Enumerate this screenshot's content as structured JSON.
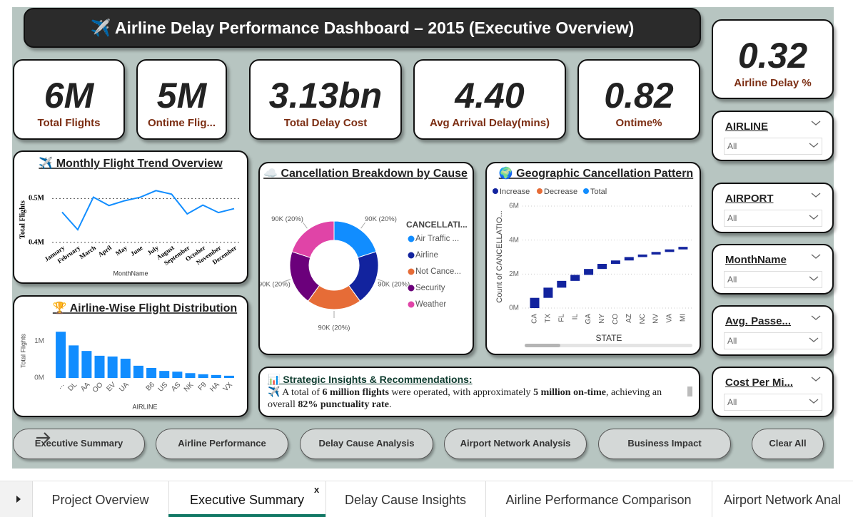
{
  "header": {
    "title": "✈️ Airline Delay Performance Dashboard – 2015 (Executive Overview)"
  },
  "kpis": [
    {
      "value": "6M",
      "label": "Total Flights"
    },
    {
      "value": "5M",
      "label": "Ontime Flig..."
    },
    {
      "value": "3.13bn",
      "label": "Total Delay Cost"
    },
    {
      "value": "4.40",
      "label": "Avg Arrival Delay(mins)"
    },
    {
      "value": "0.82",
      "label": "Ontime%"
    },
    {
      "value": "0.32",
      "label": "Airline Delay %"
    }
  ],
  "filters": [
    {
      "label": "AIRLINE",
      "value": "All"
    },
    {
      "label": "AIRPORT",
      "value": "All"
    },
    {
      "label": "MonthName",
      "value": "All"
    },
    {
      "label": "Avg. Passe...",
      "value": "All"
    },
    {
      "label": "Cost Per Mi...",
      "value": "All"
    }
  ],
  "monthly_chart": {
    "type": "line",
    "title": "✈️ Monthly Flight Trend Overview",
    "x_label": "MonthName",
    "y_label": "Total Flights",
    "color": "#118DFF",
    "categories": [
      "January",
      "February",
      "March",
      "April",
      "May",
      "June",
      "July",
      "August",
      "September",
      "October",
      "November",
      "December"
    ],
    "values": [
      469000,
      429000,
      503000,
      484000,
      495000,
      503000,
      518000,
      510000,
      465000,
      485000,
      468000,
      477000
    ],
    "ylim": [
      400000,
      525000
    ],
    "yticks": [
      {
        "value": 400000,
        "label": "0.4M"
      },
      {
        "value": 500000,
        "label": "0.5M"
      }
    ],
    "grid": true
  },
  "airline_chart": {
    "type": "bar",
    "title": "🏆 Airline-Wise Flight Distribution",
    "x_label": "AIRLINE",
    "y_label": "Total Flights",
    "color": "#118DFF",
    "categories": [
      "...",
      "DL",
      "AA",
      "OO",
      "EV",
      "UA",
      null,
      "B6",
      "US",
      "AS",
      "NK",
      "F9",
      "HA",
      "VX"
    ],
    "values": [
      1250000,
      880000,
      730000,
      600000,
      580000,
      520000,
      330000,
      270000,
      190000,
      170000,
      130000,
      100000,
      80000,
      60000
    ],
    "ylim": [
      0,
      1350000
    ],
    "yticks": [
      {
        "value": 0,
        "label": "0M"
      },
      {
        "value": 1000000,
        "label": "1M"
      }
    ]
  },
  "cancellation_chart": {
    "type": "donut",
    "title": "☁️ Cancellation Breakdown by Cause",
    "legend_title": "CANCELLATI...",
    "categories": [
      "Air Traffic ...",
      "Airline",
      "Not Cance...",
      "Security",
      "Weather"
    ],
    "values": [
      90000,
      90000,
      90000,
      90000,
      90000
    ],
    "value_labels": [
      "90K (20%)",
      "90K (20%)",
      "90K (20%)",
      "90K (20%)",
      "90K (20%)"
    ],
    "colors": [
      "#118DFF",
      "#12239E",
      "#E66C37",
      "#6B007B",
      "#E044A7"
    ]
  },
  "geo_chart": {
    "type": "waterfall",
    "title": "🌍 Geographic Cancellation Pattern",
    "x_label": "STATE",
    "y_label": "Count of CANCELLATIO...",
    "legend": [
      {
        "name": "Increase",
        "color": "#12239E"
      },
      {
        "name": "Decrease",
        "color": "#E66C37"
      },
      {
        "name": "Total",
        "color": "#118DFF"
      }
    ],
    "categories": [
      "CA",
      "TX",
      "FL",
      "IL",
      "GA",
      "NY",
      "CO",
      "AZ",
      "NC",
      "NV",
      "VA",
      "MI"
    ],
    "values": [
      600000,
      600000,
      400000,
      350000,
      350000,
      300000,
      200000,
      200000,
      150000,
      150000,
      150000,
      150000
    ],
    "ylim": [
      0,
      6250000
    ],
    "yticks": [
      {
        "value": 0,
        "label": "0M"
      },
      {
        "value": 2000000,
        "label": "2M"
      },
      {
        "value": 4000000,
        "label": "4M"
      },
      {
        "value": 6000000,
        "label": "6M"
      }
    ],
    "grid": true
  },
  "insights": {
    "title": "📊 Strategic Insights & Recommendations:",
    "segments": [
      {
        "text": "✈️ A total of ",
        "bold": false
      },
      {
        "text": "6 million flights",
        "bold": true
      },
      {
        "text": " were operated, with approximately ",
        "bold": false
      },
      {
        "text": "5 million on-time",
        "bold": true
      },
      {
        "text": ", achieving an overall ",
        "bold": false
      },
      {
        "text": "82% punctuality rate",
        "bold": true
      },
      {
        "text": ".",
        "bold": false
      }
    ]
  },
  "buttons": [
    "Executive Summary",
    "Airline Performance",
    "Delay Cause Analysis",
    "Airport Network Analysis",
    "Business Impact",
    "Clear All"
  ],
  "tabs": {
    "items": [
      "Project Overview",
      "Executive Summary",
      "Delay Cause Insights",
      "Airline Performance Comparison",
      "Airport Network Anal"
    ],
    "active": 1,
    "close": "x"
  }
}
